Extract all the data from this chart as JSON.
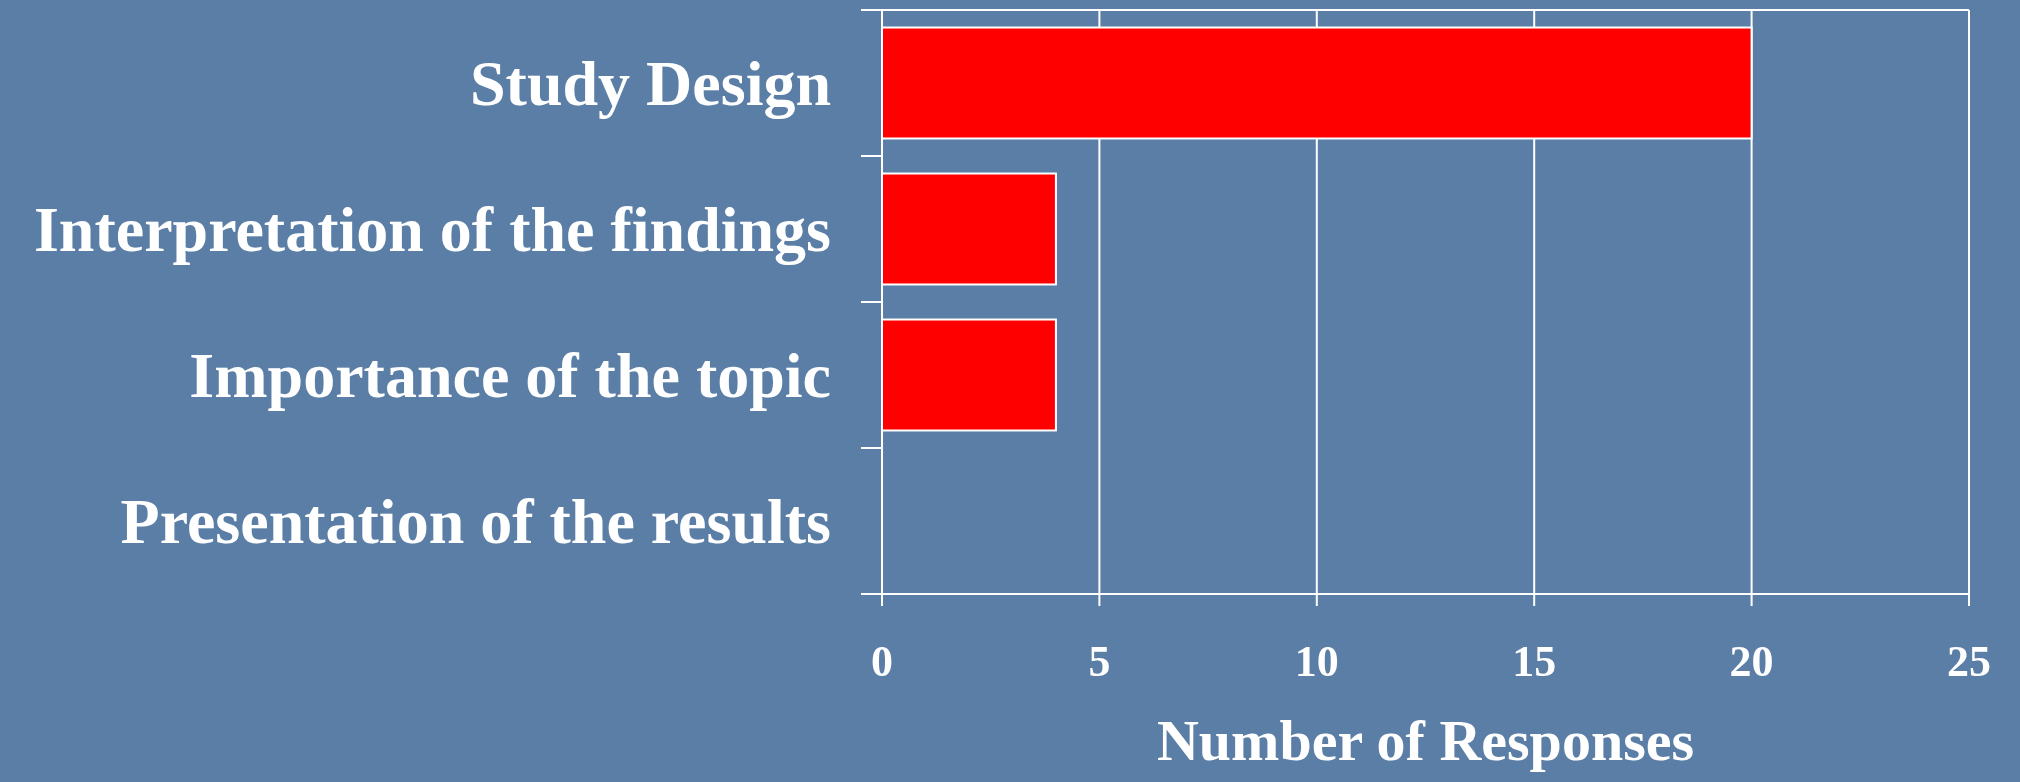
{
  "chart_data": {
    "type": "bar",
    "orientation": "horizontal",
    "categories": [
      "Study Design",
      "Interpretation of the findings",
      "Importance of the topic",
      "Presentation of the results"
    ],
    "values": [
      20,
      4,
      4,
      0
    ],
    "color": "#ff0000",
    "xlabel": "Number of Responses",
    "xlim": [
      0,
      25
    ],
    "xticks": [
      0,
      5,
      10,
      15,
      20,
      25
    ],
    "grid": "x"
  }
}
